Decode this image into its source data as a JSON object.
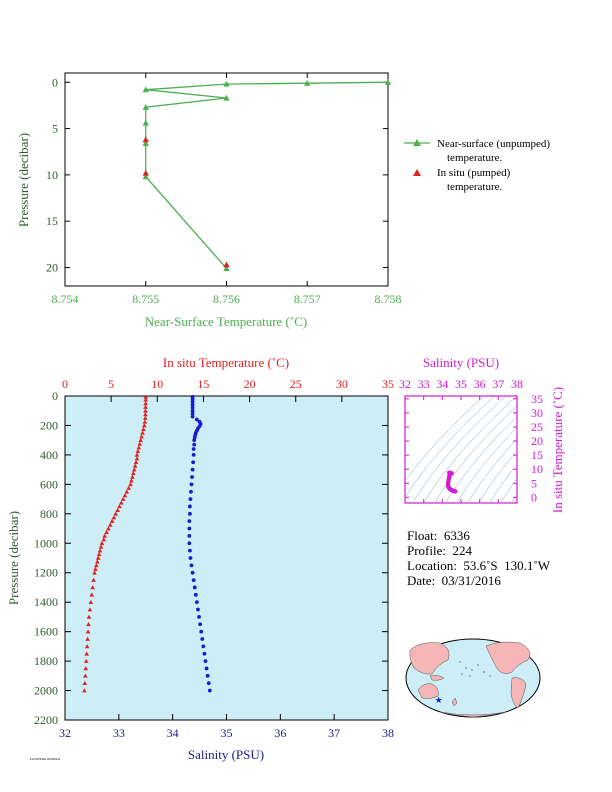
{
  "colors": {
    "green": "#4caf50",
    "red": "#e32020",
    "blue": "#1a1ad6",
    "navy": "#1a1a8c",
    "magenta": "#d21bd2",
    "dark_green": "#2e5a2e",
    "plot_bg": "#cdeef7",
    "land": "#f4b6b6",
    "ocean": "#cdeef7"
  },
  "chart_data": [
    {
      "type": "line",
      "id": "near-surface",
      "xlabel": "Near-Surface Temperature (˚C)",
      "ylabel": "Pressure (decibar)",
      "xlim": [
        8.754,
        8.758
      ],
      "ylim": [
        22,
        -1
      ],
      "xticks": [
        "8.754",
        "8.755",
        "8.756",
        "8.757",
        "8.758"
      ],
      "xtick_values": [
        8.754,
        8.755,
        8.756,
        8.757,
        8.758
      ],
      "yticks": [
        "0",
        "5",
        "10",
        "15",
        "20"
      ],
      "ytick_values": [
        0,
        5,
        10,
        15,
        20
      ],
      "series": [
        {
          "name": "Near-surface (unpumped) temperature.",
          "legend_line1": "Near-surface (unpumped)",
          "legend_line2": "temperature.",
          "marker": "triangle",
          "line": true,
          "points": [
            [
              8.758,
              0.0
            ],
            [
              8.757,
              0.1
            ],
            [
              8.756,
              0.2
            ],
            [
              8.755,
              0.8
            ],
            [
              8.756,
              1.7
            ],
            [
              8.755,
              2.7
            ],
            [
              8.755,
              4.4
            ],
            [
              8.755,
              6.6
            ],
            [
              8.755,
              10.2
            ],
            [
              8.756,
              20.1
            ]
          ]
        },
        {
          "name": "In situ (pumped) temperature.",
          "legend_line1": "In situ (pumped)",
          "legend_line2": "temperature.",
          "marker": "triangle",
          "line": false,
          "points": [
            [
              8.755,
              6.2
            ],
            [
              8.755,
              9.8
            ],
            [
              8.756,
              19.7
            ]
          ]
        }
      ]
    },
    {
      "type": "scatter",
      "id": "profile",
      "ylabel": "Pressure (decibar)",
      "x_bottom_label": "Salinity (PSU)",
      "x_top_label": "In situ Temperature (˚C)",
      "salinity_lim": [
        32,
        38
      ],
      "temperature_lim": [
        0,
        35
      ],
      "pressure_lim": [
        2200,
        0
      ],
      "salinity_ticks": [
        "32",
        "33",
        "34",
        "35",
        "36",
        "37",
        "38"
      ],
      "temperature_ticks": [
        "0",
        "5",
        "10",
        "15",
        "20",
        "25",
        "30",
        "35"
      ],
      "pressure_ticks": [
        "0",
        "200",
        "400",
        "600",
        "800",
        "1000",
        "1200",
        "1400",
        "1600",
        "1800",
        "2000",
        "2200"
      ],
      "temperature_profile": [
        [
          8.76,
          5
        ],
        [
          8.75,
          25
        ],
        [
          8.74,
          50
        ],
        [
          8.73,
          75
        ],
        [
          8.72,
          100
        ],
        [
          8.71,
          125
        ],
        [
          8.7,
          150
        ],
        [
          8.65,
          175
        ],
        [
          8.6,
          200
        ],
        [
          8.5,
          225
        ],
        [
          8.4,
          250
        ],
        [
          8.3,
          275
        ],
        [
          8.2,
          300
        ],
        [
          8.1,
          325
        ],
        [
          8.0,
          350
        ],
        [
          7.9,
          375
        ],
        [
          7.8,
          400
        ],
        [
          7.8,
          425
        ],
        [
          7.7,
          450
        ],
        [
          7.6,
          475
        ],
        [
          7.5,
          500
        ],
        [
          7.4,
          525
        ],
        [
          7.3,
          550
        ],
        [
          7.2,
          575
        ],
        [
          7.1,
          600
        ],
        [
          6.9,
          625
        ],
        [
          6.7,
          650
        ],
        [
          6.5,
          675
        ],
        [
          6.3,
          700
        ],
        [
          6.1,
          725
        ],
        [
          5.9,
          750
        ],
        [
          5.7,
          775
        ],
        [
          5.5,
          800
        ],
        [
          5.3,
          825
        ],
        [
          5.1,
          850
        ],
        [
          4.9,
          875
        ],
        [
          4.7,
          900
        ],
        [
          4.5,
          925
        ],
        [
          4.3,
          950
        ],
        [
          4.2,
          975
        ],
        [
          4.0,
          1000
        ],
        [
          3.9,
          1025
        ],
        [
          3.8,
          1050
        ],
        [
          3.7,
          1075
        ],
        [
          3.6,
          1100
        ],
        [
          3.5,
          1125
        ],
        [
          3.4,
          1150
        ],
        [
          3.3,
          1175
        ],
        [
          3.2,
          1200
        ],
        [
          3.1,
          1250
        ],
        [
          3.0,
          1300
        ],
        [
          2.9,
          1350
        ],
        [
          2.8,
          1400
        ],
        [
          2.7,
          1450
        ],
        [
          2.6,
          1500
        ],
        [
          2.55,
          1550
        ],
        [
          2.5,
          1600
        ],
        [
          2.45,
          1650
        ],
        [
          2.4,
          1700
        ],
        [
          2.35,
          1750
        ],
        [
          2.3,
          1800
        ],
        [
          2.25,
          1850
        ],
        [
          2.2,
          1900
        ],
        [
          2.15,
          1950
        ],
        [
          2.1,
          2000
        ]
      ],
      "salinity_profile": [
        [
          34.37,
          5
        ],
        [
          34.37,
          20
        ],
        [
          34.37,
          40
        ],
        [
          34.37,
          60
        ],
        [
          34.37,
          80
        ],
        [
          34.37,
          100
        ],
        [
          34.37,
          120
        ],
        [
          34.37,
          140
        ],
        [
          34.45,
          160
        ],
        [
          34.5,
          175
        ],
        [
          34.52,
          190
        ],
        [
          34.5,
          205
        ],
        [
          34.47,
          220
        ],
        [
          34.45,
          235
        ],
        [
          34.43,
          250
        ],
        [
          34.42,
          265
        ],
        [
          34.41,
          280
        ],
        [
          34.4,
          300
        ],
        [
          34.4,
          330
        ],
        [
          34.39,
          360
        ],
        [
          34.39,
          400
        ],
        [
          34.38,
          450
        ],
        [
          34.37,
          500
        ],
        [
          34.36,
          550
        ],
        [
          34.35,
          600
        ],
        [
          34.34,
          650
        ],
        [
          34.33,
          700
        ],
        [
          34.32,
          750
        ],
        [
          34.32,
          800
        ],
        [
          34.31,
          850
        ],
        [
          34.31,
          900
        ],
        [
          34.31,
          950
        ],
        [
          34.31,
          1000
        ],
        [
          34.32,
          1050
        ],
        [
          34.33,
          1100
        ],
        [
          34.35,
          1150
        ],
        [
          34.37,
          1200
        ],
        [
          34.39,
          1250
        ],
        [
          34.41,
          1300
        ],
        [
          34.43,
          1350
        ],
        [
          34.45,
          1400
        ],
        [
          34.47,
          1450
        ],
        [
          34.49,
          1500
        ],
        [
          34.51,
          1550
        ],
        [
          34.53,
          1600
        ],
        [
          34.55,
          1650
        ],
        [
          34.57,
          1700
        ],
        [
          34.59,
          1750
        ],
        [
          34.61,
          1800
        ],
        [
          34.63,
          1850
        ],
        [
          34.65,
          1900
        ],
        [
          34.67,
          1950
        ],
        [
          34.69,
          2000
        ]
      ]
    },
    {
      "type": "scatter",
      "id": "ts-diagram",
      "x_top_label": "Salinity (PSU)",
      "y_right_label": "In situ Temperature (˚C)",
      "salinity_lim": [
        32,
        38
      ],
      "temperature_lim": [
        -2,
        36
      ],
      "salinity_ticks": [
        "32",
        "33",
        "34",
        "35",
        "36",
        "37",
        "38"
      ],
      "temperature_ticks": [
        "0",
        "5",
        "10",
        "15",
        "20",
        "25",
        "30",
        "35"
      ],
      "points": [
        [
          34.37,
          8.76
        ],
        [
          34.5,
          8.6
        ],
        [
          34.45,
          8.3
        ],
        [
          34.4,
          8.0
        ],
        [
          34.38,
          7.7
        ],
        [
          34.36,
          7.0
        ],
        [
          34.34,
          6.3
        ],
        [
          34.32,
          5.5
        ],
        [
          34.31,
          4.8
        ],
        [
          34.31,
          4.0
        ],
        [
          34.33,
          3.7
        ],
        [
          34.37,
          3.2
        ],
        [
          34.41,
          3.0
        ],
        [
          34.45,
          2.8
        ],
        [
          34.49,
          2.6
        ],
        [
          34.53,
          2.5
        ],
        [
          34.57,
          2.35
        ],
        [
          34.61,
          2.3
        ],
        [
          34.65,
          2.2
        ],
        [
          34.69,
          2.1
        ]
      ]
    }
  ],
  "float_info": {
    "float": "Float:  6336",
    "profile": "Profile:  224",
    "location": "Location:  53.6˚S  130.1˚W",
    "date": "Date:  03/31/2016"
  },
  "footer_tiny": "FLOAT6336 20160331",
  "map": {
    "marker_lon": -130.1,
    "marker_lat": -53.6,
    "marker_symbol": "★"
  }
}
